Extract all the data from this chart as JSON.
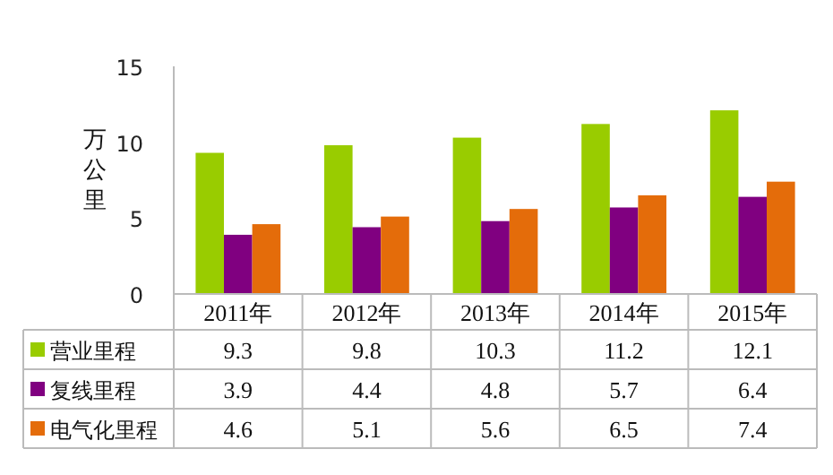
{
  "chart_data": {
    "type": "bar",
    "ylabel": "万公里",
    "categories": [
      "2011年",
      "2012年",
      "2013年",
      "2014年",
      "2015年"
    ],
    "series": [
      {
        "name": "营业里程",
        "color": "#99cc00",
        "values": [
          9.3,
          9.8,
          10.3,
          11.2,
          12.1
        ]
      },
      {
        "name": "复线里程",
        "color": "#800080",
        "values": [
          3.9,
          4.4,
          4.8,
          5.7,
          6.4
        ]
      },
      {
        "name": "电气化里程",
        "color": "#e46c0a",
        "values": [
          4.6,
          5.1,
          5.6,
          6.5,
          7.4
        ]
      }
    ],
    "ylim": [
      0,
      15
    ],
    "yticks": [
      0,
      5,
      10,
      15
    ],
    "data_labels": true,
    "legend": "bottom",
    "grid": false
  }
}
